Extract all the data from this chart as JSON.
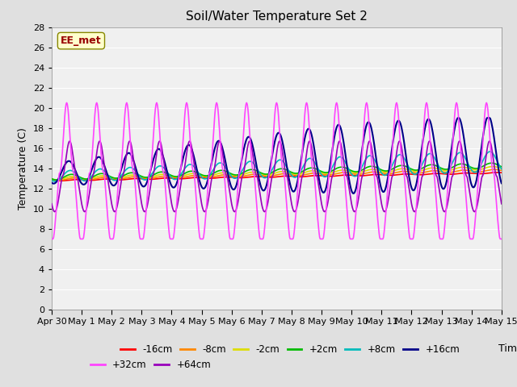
{
  "title": "Soil/Water Temperature Set 2",
  "xlabel": "Time",
  "ylabel": "Temperature (C)",
  "ylim": [
    0,
    28
  ],
  "yticks": [
    0,
    2,
    4,
    6,
    8,
    10,
    12,
    14,
    16,
    18,
    20,
    22,
    24,
    26,
    28
  ],
  "xtick_labels": [
    "Apr 30",
    "May 1",
    "May 2",
    "May 3",
    "May 4",
    "May 5",
    "May 6",
    "May 7",
    "May 8",
    "May 9",
    "May 10",
    "May 11",
    "May 12",
    "May 13",
    "May 14",
    "May 15"
  ],
  "series": {
    "-16cm": {
      "color": "#ff0000",
      "lw": 1.2
    },
    "-8cm": {
      "color": "#ff8800",
      "lw": 1.2
    },
    "-2cm": {
      "color": "#dddd00",
      "lw": 1.2
    },
    "+2cm": {
      "color": "#00bb00",
      "lw": 1.2
    },
    "+8cm": {
      "color": "#00bbbb",
      "lw": 1.2
    },
    "+16cm": {
      "color": "#000088",
      "lw": 1.5
    },
    "+32cm": {
      "color": "#ff44ff",
      "lw": 1.2
    },
    "+64cm": {
      "color": "#9900bb",
      "lw": 1.2
    }
  },
  "annotation_text": "EE_met",
  "annotation_color": "#990000",
  "annotation_bg": "#ffffcc",
  "fig_color": "#e0e0e0",
  "plot_bg": "#f0f0f0"
}
